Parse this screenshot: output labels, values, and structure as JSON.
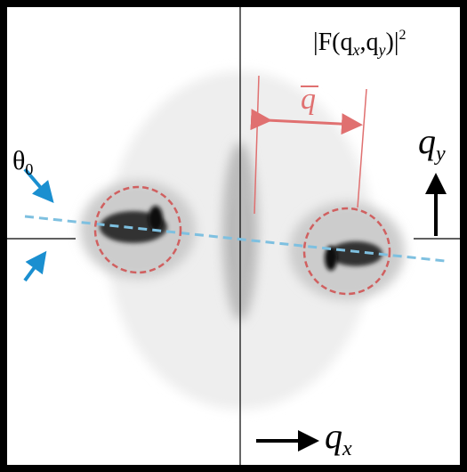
{
  "labels": {
    "intensity": {
      "prefix": "|F(q",
      "sub1": "x",
      "mid": ",q",
      "sub2": "y",
      "suffix": ")|",
      "sup": "2"
    },
    "qbar": {
      "base": "q"
    },
    "theta": {
      "base": "θ",
      "sub": "0"
    },
    "qy": {
      "base": "q",
      "sub": "y"
    },
    "qx": {
      "base": "q",
      "sub": "x"
    }
  }
}
